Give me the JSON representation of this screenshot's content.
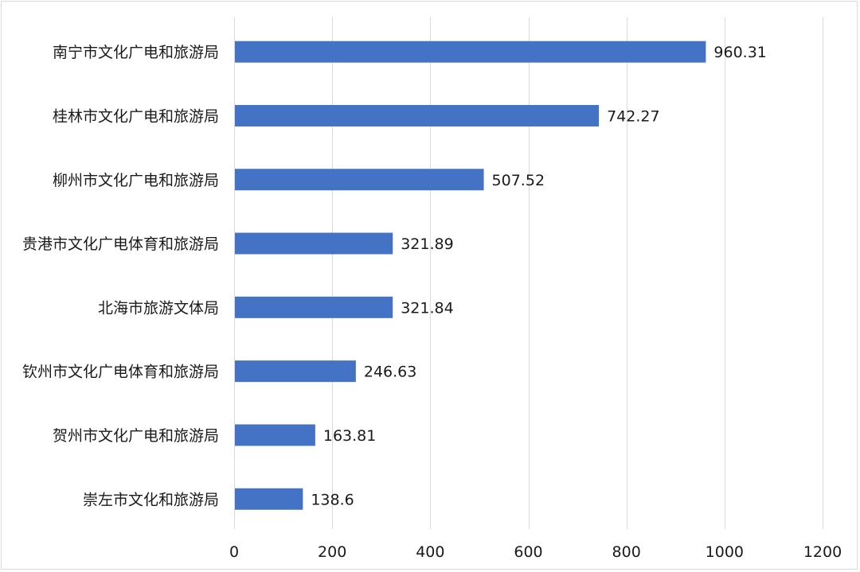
{
  "chart_data": {
    "type": "bar",
    "orientation": "horizontal",
    "title": "",
    "xlabel": "",
    "ylabel": "",
    "categories": [
      "南宁市文化广电和旅游局",
      "桂林市文化广电和旅游局",
      "柳州市文化广电和旅游局",
      "贵港市文化广电体育和旅游局",
      "北海市旅游文体局",
      "钦州市文化广电体育和旅游局",
      "贺州市文化广电和旅游局",
      "崇左市文化和旅游局"
    ],
    "values": [
      960.31,
      742.27,
      507.52,
      321.89,
      321.84,
      246.63,
      163.81,
      138.6
    ],
    "data_labels": [
      "960.31",
      "742.27",
      "507.52",
      "321.89",
      "321.84",
      "246.63",
      "163.81",
      "138.6"
    ],
    "xlim": [
      0,
      1200
    ],
    "x_ticks": [
      0,
      200,
      400,
      600,
      800,
      1000,
      1200
    ],
    "x_tick_labels": [
      "0",
      "200",
      "400",
      "600",
      "800",
      "1000",
      "1200"
    ],
    "grid": "vertical",
    "legend": "none",
    "bar_color": "#4472c4"
  }
}
